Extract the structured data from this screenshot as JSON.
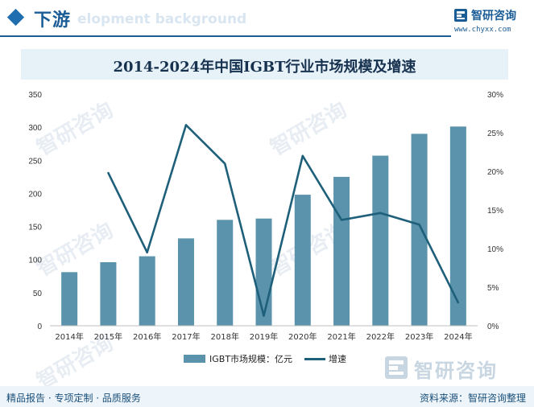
{
  "header": {
    "title": "下游",
    "ghost_text": "elopment background"
  },
  "brand": {
    "name": "智研咨询",
    "url": "www.chyxx.com",
    "watermark": "智研咨询"
  },
  "footer": {
    "left": "精品报告 · 专项定制 · 品质服务",
    "right": "资料来源：智研咨询整理"
  },
  "colors": {
    "bar": "#5a93ab",
    "line": "#1e5f7a",
    "header_accent": "#1a5c96"
  },
  "chart_data": {
    "type": "bar",
    "title": "2014-2024年中国IGBT行业市场规模及增速",
    "categories": [
      "2014年",
      "2015年",
      "2016年",
      "2017年",
      "2018年",
      "2019年",
      "2020年",
      "2021年",
      "2022年",
      "2023年",
      "2024年"
    ],
    "series": [
      {
        "name": "IGBT市场规模：亿元",
        "type": "bar",
        "axis": "left",
        "values": [
          81,
          96,
          105,
          132,
          160,
          162,
          198,
          225,
          257,
          290,
          301
        ]
      },
      {
        "name": "增速",
        "type": "line",
        "axis": "right",
        "values": [
          null,
          19.8,
          9.5,
          26.0,
          21.0,
          1.3,
          22.0,
          13.7,
          14.6,
          13.1,
          3.0
        ]
      }
    ],
    "y_left": {
      "min": 0,
      "max": 350,
      "step": 50,
      "ticks": [
        "0",
        "50",
        "100",
        "150",
        "200",
        "250",
        "300",
        "350"
      ]
    },
    "y_right": {
      "min": 0,
      "max": 30,
      "step": 5,
      "ticks": [
        "0%",
        "5%",
        "10%",
        "15%",
        "20%",
        "25%",
        "30%"
      ]
    },
    "grid": false,
    "legend_position": "bottom-center"
  }
}
